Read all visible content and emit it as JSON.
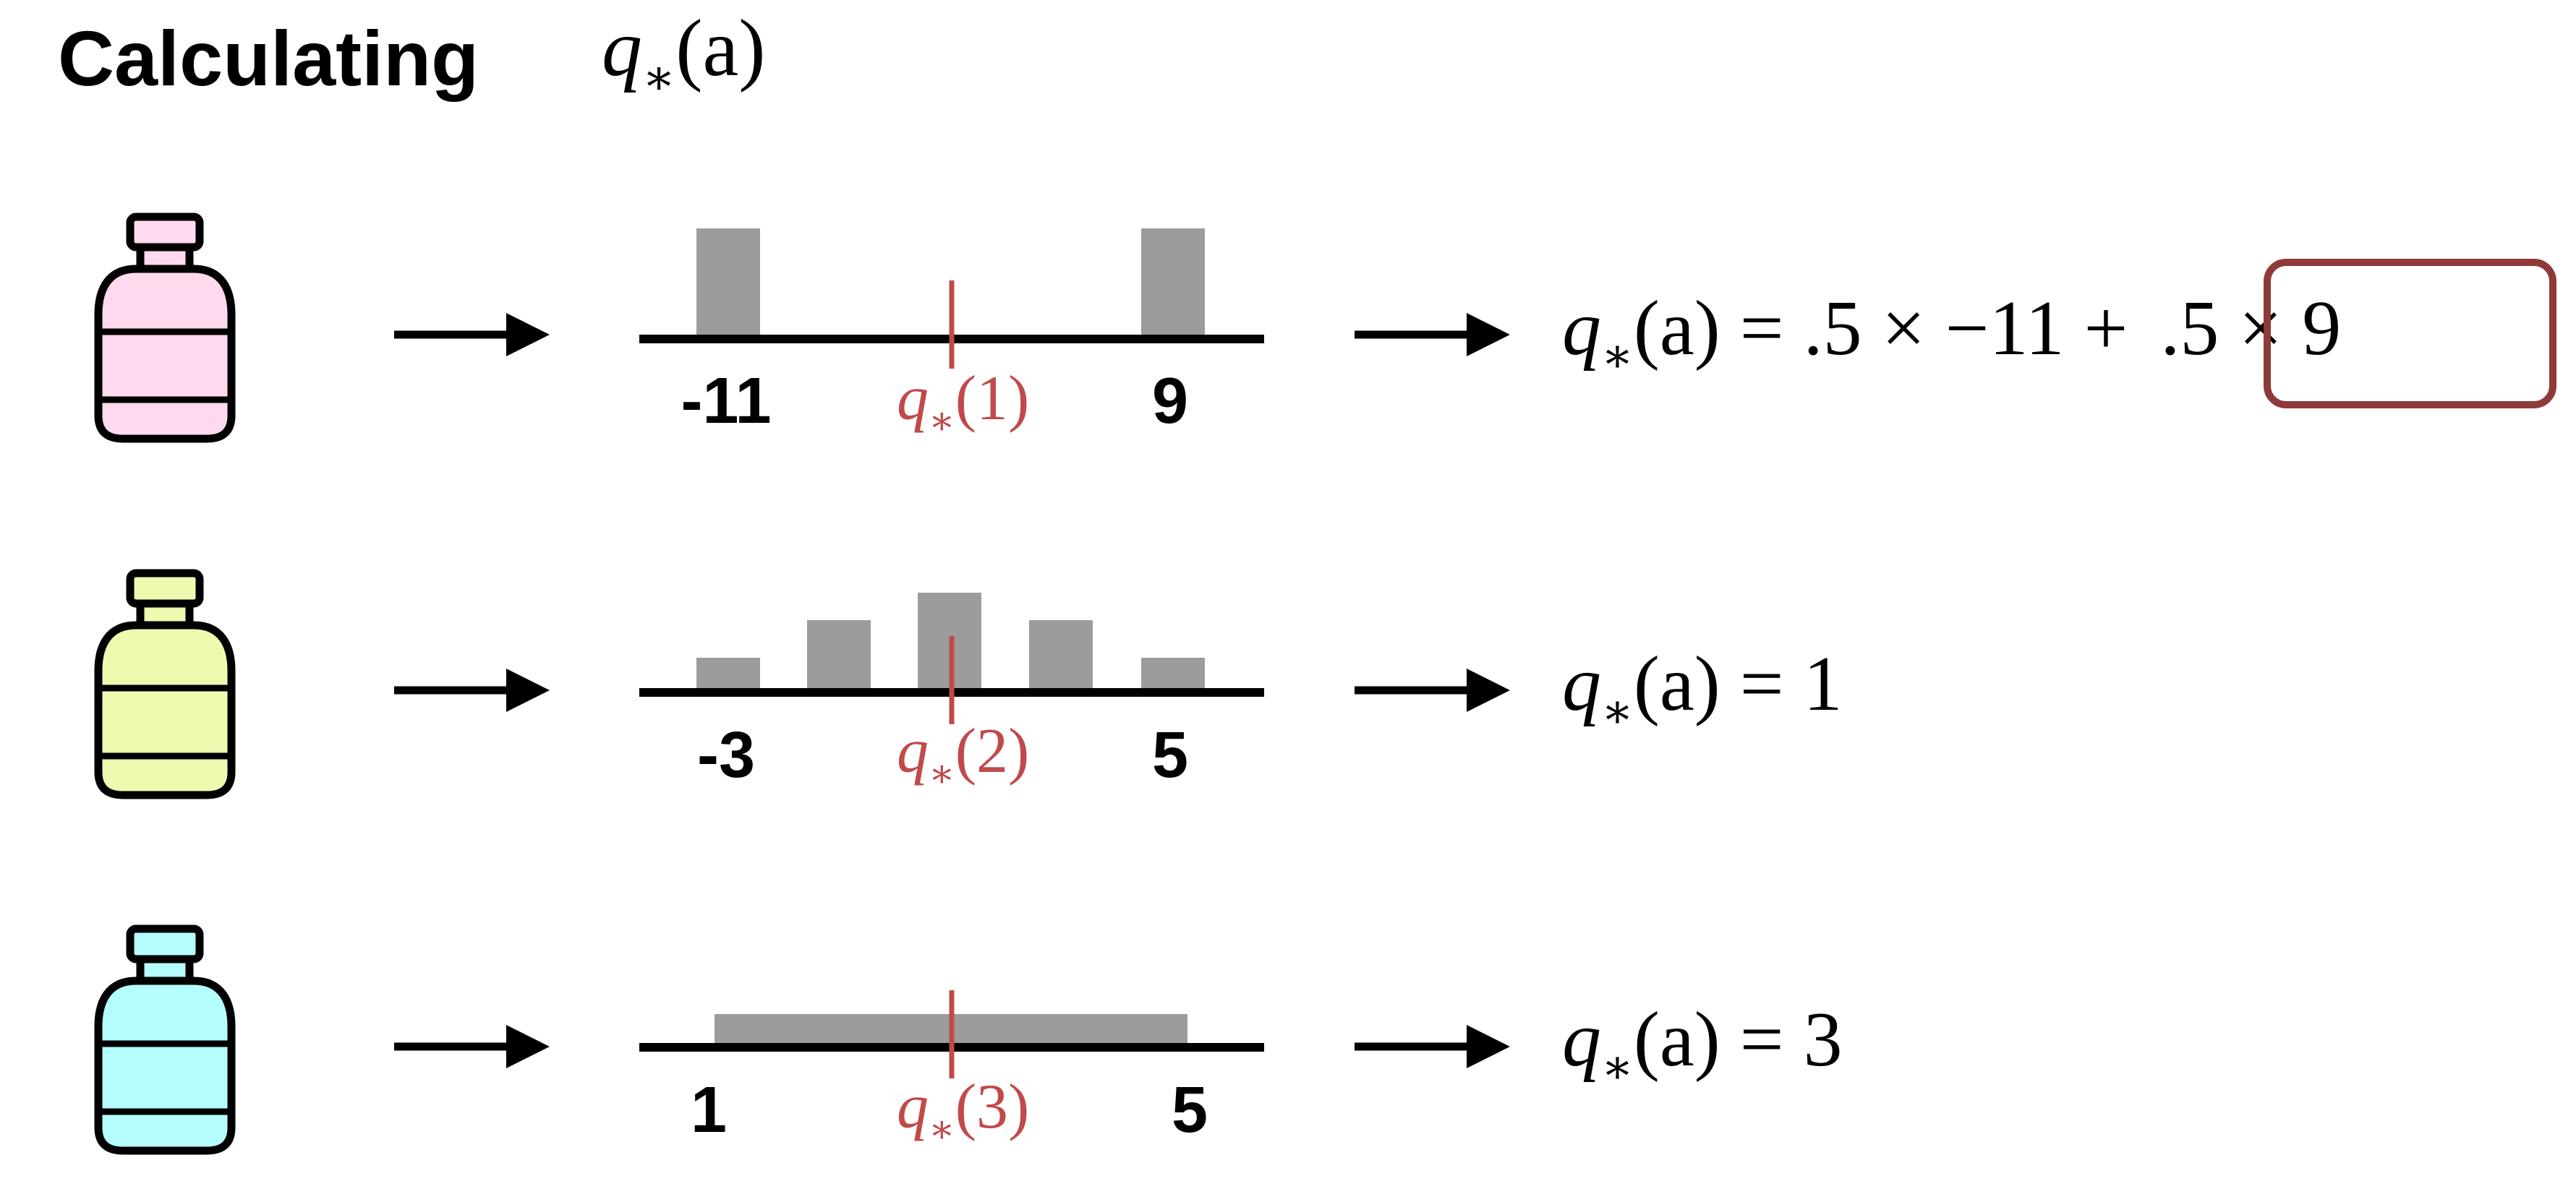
{
  "title": {
    "text": "Calculating",
    "math": {
      "sym": "q",
      "sub": "∗",
      "arg": "(a)"
    }
  },
  "colors": {
    "ink": "#000000",
    "bar": "#9c9c9c",
    "accent": "#c04a4a",
    "highlight_box": "#8f3a3a"
  },
  "rows": [
    {
      "bottle_color": "#ffd9ee",
      "bottle_icon": "medicine-bottle-icon",
      "ticks": [
        "-11",
        "9"
      ],
      "dist_label": {
        "sym": "q",
        "sub": "∗",
        "arg": "(1)"
      },
      "equation": {
        "sym": "q",
        "sub": "∗",
        "arg": "(a)",
        "rhs_main": " = .5 × −11 + ",
        "rhs_boxed": ".5 × 9"
      },
      "distribution": {
        "type": "discrete",
        "support": [
          -11,
          9
        ],
        "probs": [
          0.5,
          0.5
        ]
      }
    },
    {
      "bottle_color": "#ecfbb0",
      "bottle_icon": "medicine-bottle-icon",
      "ticks": [
        "-3",
        "5"
      ],
      "dist_label": {
        "sym": "q",
        "sub": "∗",
        "arg": "(2)"
      },
      "equation": {
        "sym": "q",
        "sub": "∗",
        "arg": "(a)",
        "rhs_main": " = 1",
        "rhs_boxed": ""
      },
      "distribution": {
        "type": "discrete",
        "support": [
          -3,
          -1,
          1,
          3,
          5
        ],
        "probs": [
          0.1,
          0.2,
          0.4,
          0.2,
          0.1
        ]
      }
    },
    {
      "bottle_color": "#b4fdfc",
      "bottle_icon": "medicine-bottle-icon",
      "ticks": [
        "1",
        "5"
      ],
      "dist_label": {
        "sym": "q",
        "sub": "∗",
        "arg": "(3)"
      },
      "equation": {
        "sym": "q",
        "sub": "∗",
        "arg": "(a)",
        "rhs_main": " = 3",
        "rhs_boxed": ""
      },
      "distribution": {
        "type": "uniform",
        "range": [
          1,
          5
        ]
      }
    }
  ]
}
